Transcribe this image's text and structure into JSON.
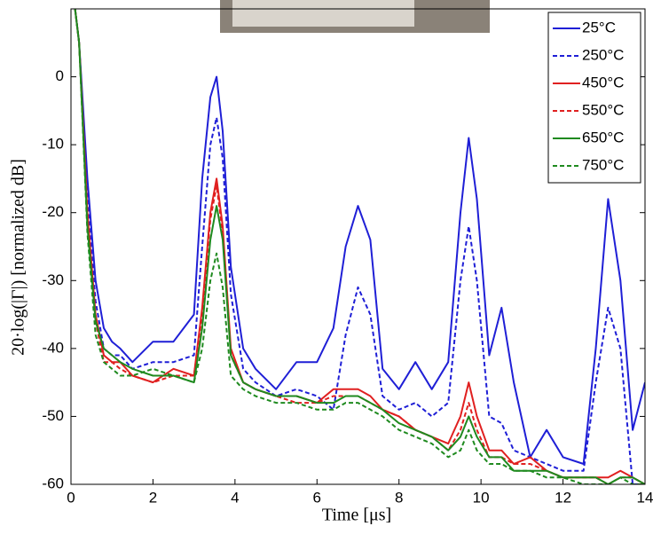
{
  "chart_data": {
    "type": "line",
    "xlabel": "Time [μs]",
    "ylabel": "20·log(|Γ|) [normalized dB]",
    "xlim": [
      0,
      14
    ],
    "xticks": [
      0,
      2,
      4,
      6,
      8,
      10,
      12,
      14
    ],
    "ylim": [
      -60,
      10
    ],
    "yticks": [
      -60,
      -50,
      -40,
      -30,
      -20,
      -10,
      0
    ],
    "grid": false,
    "legend": "upper right",
    "x": [
      0.1,
      0.2,
      0.4,
      0.6,
      0.8,
      1.0,
      1.2,
      1.5,
      2.0,
      2.5,
      3.0,
      3.2,
      3.4,
      3.55,
      3.7,
      3.9,
      4.2,
      4.5,
      5.0,
      5.5,
      6.0,
      6.4,
      6.7,
      7.0,
      7.3,
      7.6,
      8.0,
      8.4,
      8.8,
      9.2,
      9.5,
      9.7,
      9.9,
      10.2,
      10.5,
      10.8,
      11.2,
      11.6,
      12.0,
      12.5,
      12.8,
      13.1,
      13.4,
      13.7,
      14.0
    ],
    "series": [
      {
        "name": "25°C",
        "color": "#1f1fd6",
        "linestyle": "solid",
        "values": [
          10,
          5,
          -15,
          -30,
          -37,
          -39,
          -40,
          -42,
          -39,
          -39,
          -35,
          -15,
          -3,
          0,
          -8,
          -28,
          -40,
          -43,
          -46,
          -42,
          -42,
          -37,
          -25,
          -19,
          -24,
          -43,
          -46,
          -42,
          -46,
          -42,
          -20,
          -9,
          -18,
          -41,
          -34,
          -45,
          -56,
          -52,
          -56,
          -57,
          -40,
          -18,
          -30,
          -52,
          -45
        ]
      },
      {
        "name": "250°C",
        "color": "#1f1fd6",
        "linestyle": "dashed",
        "values": [
          10,
          5,
          -18,
          -33,
          -40,
          -41,
          -41,
          -43,
          -42,
          -42,
          -41,
          -25,
          -10,
          -6,
          -12,
          -32,
          -43,
          -45,
          -47,
          -46,
          -47,
          -49,
          -38,
          -31,
          -35,
          -47,
          -49,
          -48,
          -50,
          -48,
          -30,
          -22,
          -30,
          -50,
          -51,
          -55,
          -56,
          -57,
          -58,
          -58,
          -45,
          -34,
          -40,
          -60,
          -60
        ]
      },
      {
        "name": "450°C",
        "color": "#e02020",
        "linestyle": "solid",
        "values": [
          10,
          5,
          -20,
          -35,
          -41,
          -42,
          -42,
          -44,
          -45,
          -43,
          -44,
          -34,
          -20,
          -15,
          -22,
          -40,
          -45,
          -46,
          -47,
          -47,
          -48,
          -46,
          -46,
          -46,
          -47,
          -49,
          -50,
          -52,
          -53,
          -54,
          -50,
          -45,
          -50,
          -55,
          -55,
          -57,
          -56,
          -58,
          -59,
          -59,
          -59,
          -59,
          -58,
          -59,
          -60
        ]
      },
      {
        "name": "550°C",
        "color": "#e02020",
        "linestyle": "dashed",
        "values": [
          10,
          5,
          -20,
          -36,
          -42,
          -42,
          -43,
          -44,
          -45,
          -44,
          -44,
          -35,
          -21,
          -16,
          -23,
          -41,
          -45,
          -46,
          -47,
          -48,
          -48,
          -47,
          -47,
          -47,
          -48,
          -49,
          -50,
          -52,
          -53,
          -55,
          -52,
          -48,
          -52,
          -56,
          -56,
          -57,
          -57,
          -58,
          -59,
          -59,
          -59,
          -60,
          -59,
          -59,
          -60
        ]
      },
      {
        "name": "650°C",
        "color": "#1f8a1f",
        "linestyle": "solid",
        "values": [
          10,
          5,
          -22,
          -36,
          -40,
          -41,
          -42,
          -43,
          -44,
          -44,
          -45,
          -37,
          -24,
          -19,
          -24,
          -41,
          -45,
          -46,
          -47,
          -47,
          -48,
          -48,
          -47,
          -47,
          -48,
          -49,
          -51,
          -52,
          -53,
          -55,
          -53,
          -50,
          -53,
          -56,
          -56,
          -58,
          -58,
          -58,
          -59,
          -59,
          -59,
          -60,
          -59,
          -59,
          -60
        ]
      },
      {
        "name": "750°C",
        "color": "#1f8a1f",
        "linestyle": "dashed",
        "values": [
          10,
          5,
          -23,
          -38,
          -42,
          -43,
          -44,
          -44,
          -43,
          -44,
          -45,
          -40,
          -30,
          -26,
          -31,
          -44,
          -46,
          -47,
          -48,
          -48,
          -49,
          -49,
          -48,
          -48,
          -49,
          -50,
          -52,
          -53,
          -54,
          -56,
          -55,
          -52,
          -55,
          -57,
          -57,
          -58,
          -58,
          -59,
          -59,
          -60,
          -60,
          -60,
          -59,
          -60,
          -60
        ]
      }
    ]
  }
}
